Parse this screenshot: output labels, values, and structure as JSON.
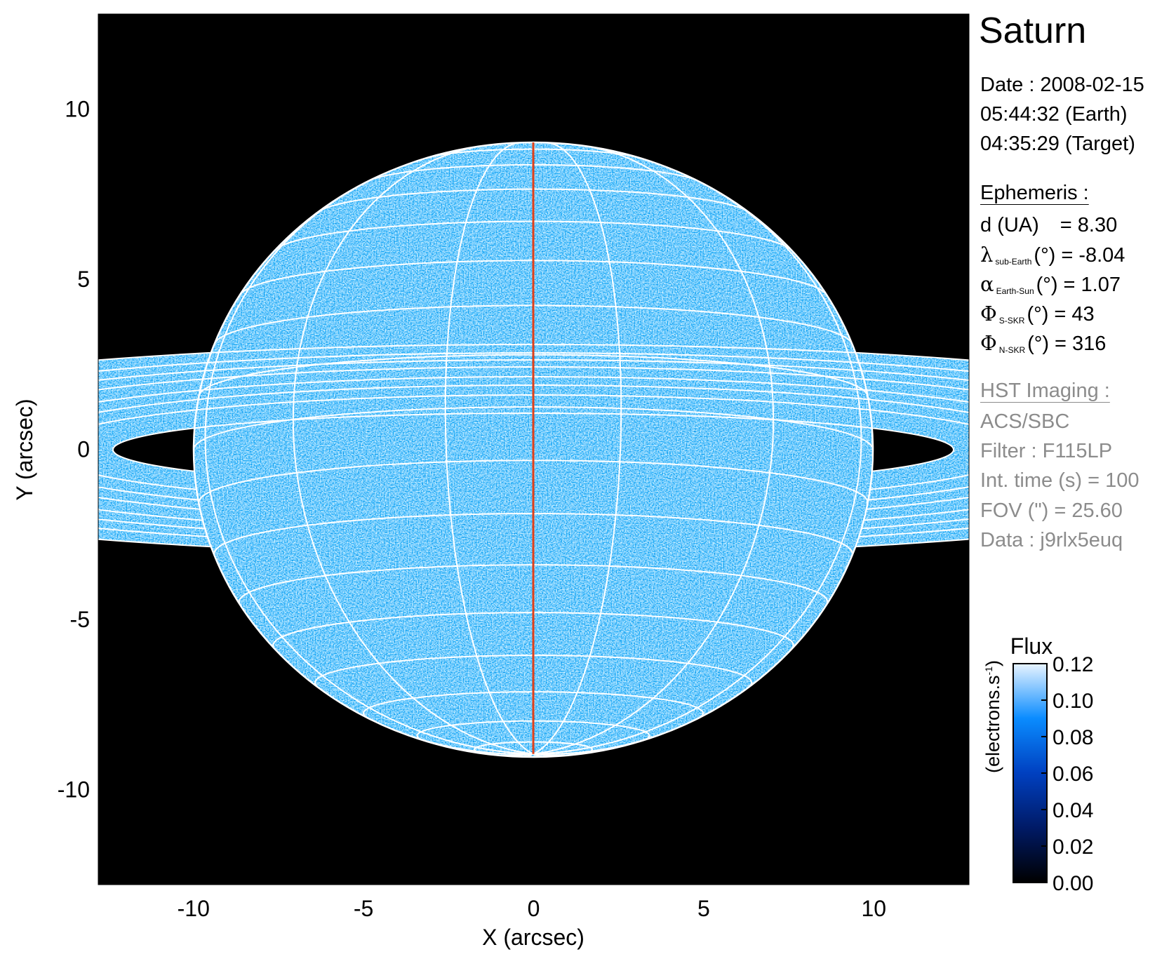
{
  "chart_data": {
    "type": "heatmap",
    "title": "Saturn",
    "xlabel": "X (arcsec)",
    "ylabel": "Y (arcsec)",
    "xlim": [
      -12.8,
      12.8
    ],
    "ylim": [
      -12.8,
      12.8
    ],
    "xticks": [
      -10,
      -5,
      0,
      5,
      10
    ],
    "yticks": [
      -10,
      -5,
      0,
      5,
      10
    ],
    "xtick_labels": [
      "-10",
      "-5",
      "0",
      "5",
      "10"
    ],
    "ytick_labels": [
      "-10",
      "-5",
      "0",
      "5",
      "10"
    ],
    "background": "#000000",
    "grid_color": "#ffffff",
    "central_meridian_color": "#e0401a",
    "colorbar": {
      "title": "Flux",
      "label": "(electrons.s",
      "label_sup": "-1",
      "label_end": ")",
      "range": [
        0.0,
        0.12
      ],
      "ticks": [
        "0.00",
        "0.02",
        "0.04",
        "0.06",
        "0.08",
        "0.10",
        "0.12"
      ],
      "colors": [
        "#000000",
        "#001a66",
        "#0040c0",
        "#0a8cff",
        "#e8f4ff"
      ]
    }
  },
  "info": {
    "date": "Date : 2008-02-15",
    "time_earth": "05:44:32 (Earth)",
    "time_target": "04:35:29 (Target)",
    "ephemeris_heading": "Ephemeris :",
    "ephemeris": [
      {
        "symbol": "",
        "sub": "",
        "label": "d (UA)",
        "value": "= 8.30"
      },
      {
        "symbol": "λ",
        "sub": "sub-Earth",
        "label": "(°)",
        "value": "= -8.04"
      },
      {
        "symbol": "α",
        "sub": "Earth-Sun",
        "label": "(°)",
        "value": "= 1.07"
      },
      {
        "symbol": "Φ",
        "sub": "S-SKR",
        "label": "(°)",
        "value": "= 43"
      },
      {
        "symbol": "Φ",
        "sub": "N-SKR",
        "label": "(°)",
        "value": "= 316"
      }
    ],
    "imaging_heading": "HST Imaging :",
    "instrument": "ACS/SBC",
    "filter": "Filter : F115LP",
    "int_time": "Int. time (s) = 100",
    "fov": "FOV (\") = 25.60",
    "data_id": "Data : j9rlx5euq"
  }
}
